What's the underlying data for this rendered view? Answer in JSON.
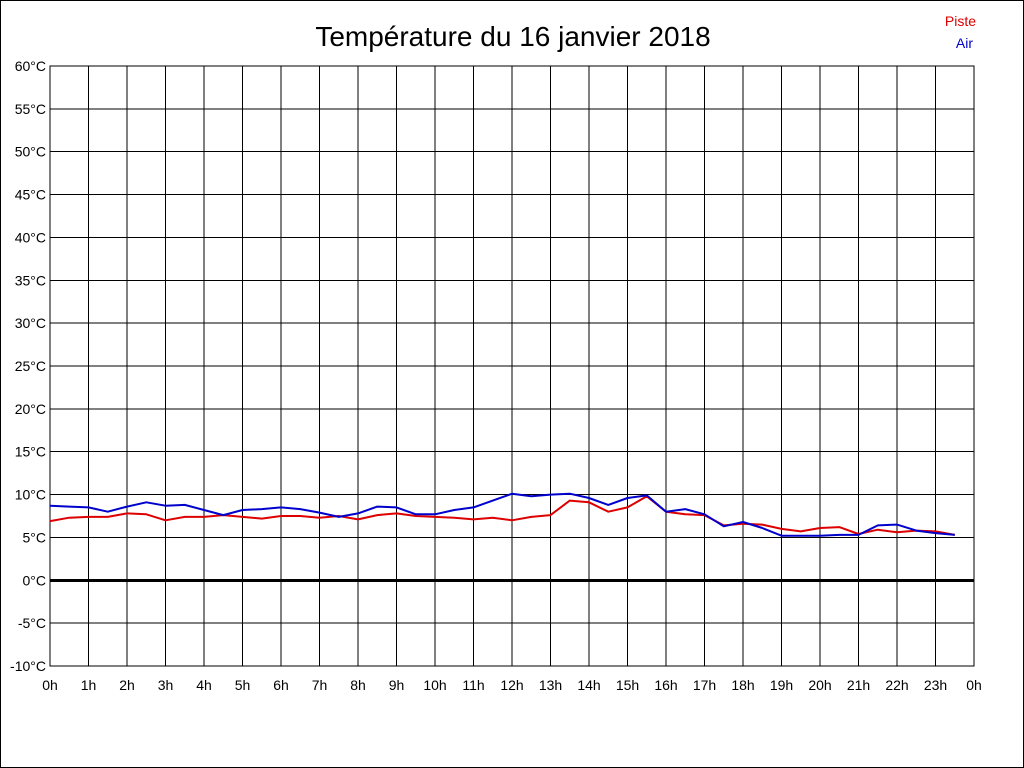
{
  "chart_data": {
    "type": "line",
    "title": "Température du 16 janvier 2018",
    "xlabel": "",
    "ylabel": "",
    "y_unit": "°C",
    "xlim": [
      0,
      24
    ],
    "ylim": [
      -10,
      60
    ],
    "grid": true,
    "legend_position": "top-right",
    "x_tick_labels": [
      "0h",
      "1h",
      "2h",
      "3h",
      "4h",
      "5h",
      "6h",
      "7h",
      "8h",
      "9h",
      "10h",
      "11h",
      "12h",
      "13h",
      "14h",
      "15h",
      "16h",
      "17h",
      "18h",
      "19h",
      "20h",
      "21h",
      "22h",
      "23h",
      "0h"
    ],
    "y_tick_labels": [
      "60°C",
      "55°C",
      "50°C",
      "45°C",
      "40°C",
      "35°C",
      "30°C",
      "25°C",
      "20°C",
      "15°C",
      "10°C",
      "5°C",
      "0°C",
      "-5°C",
      "-10°C"
    ],
    "y_tick_values": [
      60,
      55,
      50,
      45,
      40,
      35,
      30,
      25,
      20,
      15,
      10,
      5,
      0,
      -5,
      -10
    ],
    "x": [
      0,
      0.5,
      1,
      1.5,
      2,
      2.5,
      3,
      3.5,
      4,
      4.5,
      5,
      5.5,
      6,
      6.5,
      7,
      7.5,
      8,
      8.5,
      9,
      9.5,
      10,
      10.5,
      11,
      11.5,
      12,
      12.5,
      13,
      13.5,
      14,
      14.5,
      15,
      15.5,
      16,
      16.5,
      17,
      17.5,
      18,
      18.5,
      19,
      19.5,
      20,
      20.5,
      21,
      21.5,
      22,
      22.5,
      23,
      23.5
    ],
    "series": [
      {
        "name": "Piste",
        "color": "#dd0000",
        "values": [
          6.9,
          7.3,
          7.4,
          7.4,
          7.8,
          7.7,
          7.0,
          7.4,
          7.4,
          7.6,
          7.4,
          7.2,
          7.5,
          7.5,
          7.3,
          7.5,
          7.1,
          7.6,
          7.8,
          7.5,
          7.4,
          7.3,
          7.1,
          7.3,
          7.0,
          7.4,
          7.6,
          9.3,
          9.1,
          8.0,
          8.5,
          9.8,
          8.0,
          7.7,
          7.6,
          6.4,
          6.6,
          6.5,
          6.0,
          5.7,
          6.1,
          6.2,
          5.4,
          5.9,
          5.6,
          5.8,
          5.7,
          5.3
        ]
      },
      {
        "name": "Air",
        "color": "#0000cc",
        "values": [
          8.7,
          8.6,
          8.5,
          8.0,
          8.6,
          9.1,
          8.7,
          8.8,
          8.2,
          7.6,
          8.2,
          8.3,
          8.5,
          8.3,
          7.9,
          7.4,
          7.8,
          8.6,
          8.5,
          7.7,
          7.7,
          8.2,
          8.5,
          9.3,
          10.1,
          9.8,
          10.0,
          10.1,
          9.6,
          8.8,
          9.6,
          9.9,
          8.0,
          8.3,
          7.7,
          6.3,
          6.8,
          6.1,
          5.2,
          5.2,
          5.2,
          5.3,
          5.3,
          6.4,
          6.5,
          5.8,
          5.5,
          5.3
        ]
      }
    ]
  }
}
